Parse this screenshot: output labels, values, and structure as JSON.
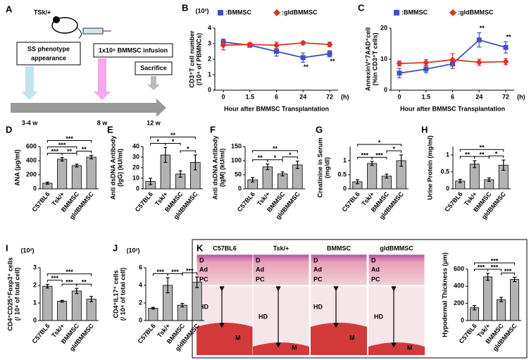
{
  "diagram": {
    "panel": "A",
    "mouse_label": "TSk/+",
    "phenotype": [
      "SS phenotype",
      "appearance"
    ],
    "infusion": "1x10⁶ BMMSC infusion",
    "sacrifice": "Sacrifice",
    "times": [
      "3-4 w",
      "8 w",
      "12 w"
    ]
  },
  "histology": {
    "panel": "K",
    "columns": [
      "C57BL6",
      "Tsk/+",
      "BMMSC",
      "gldBMMSC"
    ],
    "labels": {
      "dermis": "D",
      "adipose": "Ad",
      "panniculus": "PC",
      "hypodermis": "HD",
      "muscle": "M"
    }
  },
  "chart_data": [
    {
      "type": "line",
      "panel": "B",
      "multiplier": "(10³)",
      "ylabel": [
        "CD3⁺T cell number",
        "(/10⁴ of PBMNCs)"
      ],
      "xlabel": "Hour after BMMSC Transplantation",
      "xunit": "(h)",
      "categories": [
        "0",
        "1.5",
        "6",
        "24",
        "72"
      ],
      "ylim": [
        0,
        4
      ],
      "yticks": [
        0,
        1,
        2,
        3,
        4
      ],
      "annotation_position": "below",
      "series": [
        {
          "name": ":BMMSC",
          "color": "#4150c0",
          "marker": "square",
          "values": [
            3.1,
            2.9,
            2.5,
            2.1,
            2.35
          ],
          "errors": [
            0.2,
            0.1,
            0.3,
            0.3,
            0.2
          ]
        },
        {
          "name": ":gldBMMSC",
          "color": "#e03028",
          "marker": "diamond",
          "values": [
            2.9,
            2.95,
            2.9,
            3.05,
            2.95
          ],
          "errors": [
            0.3,
            0.1,
            0.2,
            0.1,
            0.15
          ]
        }
      ],
      "annotations": [
        {
          "at": 3,
          "label": "**"
        },
        {
          "at": 4,
          "label": "**"
        }
      ]
    },
    {
      "type": "line",
      "panel": "C",
      "ylabel": [
        "AnnexinV⁺7AAD⁺cell",
        "(%in CD3⁺T cells)"
      ],
      "xlabel": "Hour after BMMSC Transplantation",
      "xunit": "(h)",
      "categories": [
        "0",
        "1.5",
        "6",
        "24",
        "72"
      ],
      "ylim": [
        0,
        20
      ],
      "yticks": [
        0,
        10,
        20
      ],
      "annotation_position": "above",
      "series": [
        {
          "name": ":BMMSC",
          "color": "#4150c0",
          "marker": "square",
          "values": [
            5.5,
            6.8,
            8.5,
            16.2,
            13.8
          ],
          "errors": [
            1.5,
            1.2,
            1.5,
            2.3,
            1.8
          ]
        },
        {
          "name": ":gldBMMSC",
          "color": "#e03028",
          "marker": "diamond",
          "values": [
            8.6,
            8.9,
            9.8,
            9.0,
            9.2
          ],
          "errors": [
            0.8,
            1.0,
            2.0,
            1.0,
            1.0
          ]
        }
      ],
      "annotations": [
        {
          "at": 3,
          "label": "**"
        },
        {
          "at": 4,
          "label": "**"
        }
      ]
    },
    {
      "type": "bar",
      "panel": "D",
      "ylabel": [
        "ANA (μg/ml)"
      ],
      "categories": [
        "C57BL6",
        "Tsk/+",
        "BMMSC",
        "gldBMMSC"
      ],
      "color": "#b3b3b3",
      "ylim": [
        0,
        600
      ],
      "yticks": [
        0,
        200,
        400,
        600
      ],
      "values": [
        80,
        420,
        330,
        450
      ],
      "errors": [
        15,
        25,
        20,
        25
      ],
      "brackets": [
        {
          "between": [
            0,
            3
          ],
          "label": "***"
        },
        {
          "between": [
            0,
            2
          ],
          "label": "***"
        },
        {
          "between": [
            0,
            1
          ],
          "label": "***"
        },
        {
          "between": [
            1,
            2
          ],
          "label": "**"
        },
        {
          "between": [
            2,
            3
          ],
          "label": "**"
        }
      ]
    },
    {
      "type": "bar",
      "panel": "E",
      "ylabel": [
        "Anti dsDNA Antibody",
        "(IgG) (kU/ml)"
      ],
      "categories": [
        "C57BL6",
        "Tsk/+",
        "BMMSC",
        "gldBMMSC"
      ],
      "color": "#b3b3b3",
      "ylim": [
        0,
        40
      ],
      "yticks": [
        0,
        10,
        20,
        30,
        40
      ],
      "values": [
        7,
        32,
        14,
        25
      ],
      "errors": [
        3,
        7,
        3,
        7
      ],
      "brackets": [
        {
          "between": [
            0,
            3
          ],
          "label": "**"
        },
        {
          "between": [
            0,
            1
          ],
          "label": "*"
        },
        {
          "between": [
            1,
            2
          ],
          "label": "*"
        },
        {
          "between": [
            2,
            3
          ],
          "label": "*"
        }
      ]
    },
    {
      "type": "bar",
      "panel": "F",
      "ylabel": [
        "Anti dsDNA Antibody",
        "(IgM) (kU/ml)"
      ],
      "categories": [
        "C57BL6",
        "Tsk/+",
        "BMMSC",
        "gldBMMSC"
      ],
      "color": "#b3b3b3",
      "ylim": [
        0,
        150
      ],
      "yticks": [
        0,
        50,
        100,
        150
      ],
      "values": [
        32,
        78,
        53,
        85
      ],
      "errors": [
        8,
        10,
        7,
        13
      ],
      "brackets": [
        {
          "between": [
            0,
            3
          ],
          "label": "**"
        },
        {
          "between": [
            0,
            1
          ],
          "label": "**"
        },
        {
          "between": [
            1,
            2
          ],
          "label": "*"
        },
        {
          "between": [
            2,
            3
          ],
          "label": "*"
        }
      ]
    },
    {
      "type": "bar",
      "panel": "G",
      "ylabel": [
        "Creatinine in Serum",
        "(mg/dl)"
      ],
      "categories": [
        "C57BL6",
        "Tsk/+",
        "BMMSC",
        "gldBMMSC"
      ],
      "color": "#b3b3b3",
      "ylim": [
        0,
        1.5
      ],
      "yticks": [
        0,
        0.5,
        1
      ],
      "values": [
        0.25,
        0.9,
        0.45,
        1.0
      ],
      "errors": [
        0.07,
        0.07,
        0.07,
        0.2
      ],
      "brackets": [
        {
          "between": [
            0,
            3
          ],
          "label": "*"
        },
        {
          "between": [
            0,
            1
          ],
          "label": "***"
        },
        {
          "between": [
            1,
            2
          ],
          "label": "***"
        },
        {
          "between": [
            2,
            3
          ],
          "label": "*"
        }
      ]
    },
    {
      "type": "bar",
      "panel": "H",
      "ylabel": [
        "Urine Protein (mg/ml)"
      ],
      "categories": [
        "C57BL6",
        "Tsk/+",
        "BMMSC",
        "gldBMMSC"
      ],
      "color": "#b3b3b3",
      "ylim": [
        0,
        1.25
      ],
      "yticks": [
        0,
        0.5,
        1
      ],
      "values": [
        0.23,
        0.73,
        0.27,
        0.7
      ],
      "errors": [
        0.05,
        0.1,
        0.05,
        0.15
      ],
      "brackets": [
        {
          "between": [
            0,
            3
          ],
          "label": "**"
        },
        {
          "between": [
            0,
            1
          ],
          "label": "**"
        },
        {
          "between": [
            1,
            2
          ],
          "label": "**"
        },
        {
          "between": [
            2,
            3
          ],
          "label": "*"
        }
      ]
    },
    {
      "type": "bar",
      "panel": "I",
      "multiplier": "(10²)",
      "ylabel": [
        "CD4⁺CD25⁺Foxp3⁺ cells",
        "(/ 10⁴ of total cell)"
      ],
      "categories": [
        "C57BL6",
        "Tsk/+",
        "BMMSC",
        "gldBMMSC"
      ],
      "color": "#b3b3b3",
      "ylim": [
        0,
        3
      ],
      "yticks": [
        0,
        1,
        2,
        3
      ],
      "values": [
        1.95,
        1.1,
        1.68,
        1.22
      ],
      "errors": [
        0.1,
        0.05,
        0.15,
        0.15
      ],
      "brackets": [
        {
          "between": [
            0,
            3
          ],
          "label": "***"
        },
        {
          "between": [
            0,
            1
          ],
          "label": "***"
        },
        {
          "between": [
            1,
            2
          ],
          "label": "***"
        },
        {
          "between": [
            2,
            3
          ],
          "label": "**"
        }
      ]
    },
    {
      "type": "bar",
      "panel": "J",
      "multiplier": "(10²)",
      "ylabel": [
        "CD4⁺IL17⁺ cells",
        "(/ 10⁴ of total cell)"
      ],
      "categories": [
        "C57BL6",
        "Tsk/+",
        "BMMSC",
        "gldBMMSC"
      ],
      "color": "#b3b3b3",
      "ylim": [
        0,
        6
      ],
      "yticks": [
        0,
        2,
        4,
        6
      ],
      "values": [
        1.4,
        4.0,
        1.75,
        4.35
      ],
      "errors": [
        0.1,
        0.85,
        0.2,
        0.6
      ],
      "brackets": [
        {
          "between": [
            0,
            1
          ],
          "label": "***"
        },
        {
          "between": [
            1,
            2
          ],
          "label": "***"
        },
        {
          "between": [
            2,
            3
          ],
          "label": "***"
        }
      ]
    },
    {
      "type": "bar",
      "ylabel": [
        "Hypodermal Thickness (μm)"
      ],
      "categories": [
        "C57BL6",
        "Tsk/+",
        "BMMSC",
        "gldBMMSC"
      ],
      "color": "#b3b3b3",
      "ylim": [
        0,
        600
      ],
      "yticks": [
        0,
        200,
        400,
        600
      ],
      "values": [
        150,
        510,
        245,
        480
      ],
      "errors": [
        25,
        40,
        25,
        25
      ],
      "brackets": [
        {
          "between": [
            0,
            3
          ],
          "label": "***"
        },
        {
          "between": [
            0,
            1
          ],
          "label": "***"
        },
        {
          "between": [
            1,
            2
          ],
          "label": "***"
        },
        {
          "between": [
            2,
            3
          ],
          "label": "***"
        }
      ]
    }
  ]
}
